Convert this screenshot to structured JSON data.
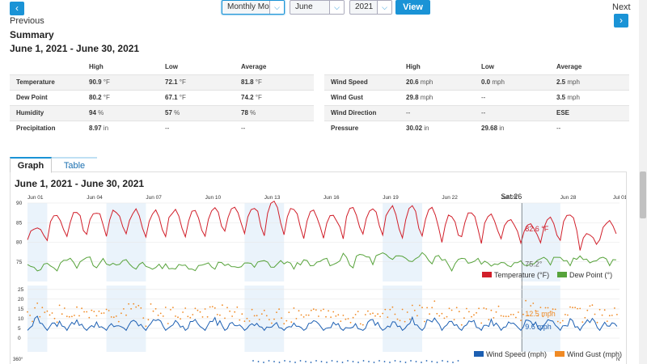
{
  "nav": {
    "prev_icon": "chevron-left-icon",
    "prev_glyph": "‹",
    "prev_label": "Previous",
    "next_icon": "chevron-right-icon",
    "next_glyph": "›",
    "next_label": "Next"
  },
  "controls": {
    "mode_value": "Monthly Mode",
    "month_value": "June",
    "year_value": "2021",
    "dropdown_glyph": "⌵",
    "view_label": "View"
  },
  "summary": {
    "heading": "Summary",
    "range": "June 1, 2021 - June 30, 2021",
    "left_table": {
      "headers": [
        "",
        "High",
        "Low",
        "Average"
      ],
      "rows": [
        {
          "label": "Temperature",
          "high": "90.9",
          "high_unit": " °F",
          "low": "72.1",
          "low_unit": " °F",
          "avg": "81.8",
          "avg_unit": " °F"
        },
        {
          "label": "Dew Point",
          "high": "80.2",
          "high_unit": " °F",
          "low": "67.1",
          "low_unit": " °F",
          "avg": "74.2",
          "avg_unit": " °F"
        },
        {
          "label": "Humidity",
          "high": "94",
          "high_unit": " %",
          "low": "57",
          "low_unit": " %",
          "avg": "78",
          "avg_unit": " %"
        },
        {
          "label": "Precipitation",
          "high": "8.97",
          "high_unit": " in",
          "low": "--",
          "low_unit": "",
          "avg": "--",
          "avg_unit": ""
        }
      ]
    },
    "right_table": {
      "headers": [
        "",
        "High",
        "Low",
        "Average"
      ],
      "rows": [
        {
          "label": "Wind Speed",
          "high": "20.6",
          "high_unit": " mph",
          "low": "0.0",
          "low_unit": " mph",
          "avg": "2.5",
          "avg_unit": " mph"
        },
        {
          "label": "Wind Gust",
          "high": "29.8",
          "high_unit": " mph",
          "low": "--",
          "low_unit": "",
          "avg": "3.5",
          "avg_unit": " mph"
        },
        {
          "label": "Wind Direction",
          "high": "--",
          "high_unit": "",
          "low": "--",
          "low_unit": "",
          "avg": "ESE",
          "avg_unit": ""
        },
        {
          "label": "Pressure",
          "high": "30.02",
          "high_unit": " in",
          "low": "29.68",
          "low_unit": " in",
          "avg": "--",
          "avg_unit": ""
        }
      ]
    }
  },
  "tabs": {
    "graph": "Graph",
    "table": "Table",
    "active": "Graph"
  },
  "graph": {
    "range_title": "June 1, 2021 - June 30, 2021",
    "hover_label": "Sat 26",
    "colors": {
      "temperature": "#d11f2a",
      "dew_point": "#57a33b",
      "wind_speed": "#1c5fb2",
      "wind_gust": "#f08a24",
      "band": "#eaf3fb"
    }
  },
  "chart_data": [
    {
      "type": "line",
      "x_ticks": [
        "Jun 01",
        "Jun 04",
        "Jun 07",
        "Jun 10",
        "Jun 13",
        "Jun 16",
        "Jun 19",
        "Jun 22",
        "Jun 25",
        "Jun 28",
        "Jul 01"
      ],
      "y_ticks": [
        "90",
        "85",
        "80",
        "75"
      ],
      "ylim": [
        70,
        90
      ],
      "xlim_days": [
        1,
        31
      ],
      "series": [
        {
          "name": "Temperature (°F)",
          "color": "#d11f2a",
          "daily_low": [
            79,
            78,
            78,
            79,
            79,
            79,
            78,
            79,
            78,
            78,
            79,
            79,
            78,
            78,
            78,
            79,
            77,
            78,
            78,
            78,
            78,
            77,
            78,
            77,
            78,
            78,
            77,
            78,
            76,
            78
          ],
          "daily_high": [
            84,
            87,
            88,
            88,
            88,
            88,
            88,
            88,
            88,
            89,
            89,
            89,
            90,
            89,
            88,
            87,
            89,
            89,
            89,
            89,
            89,
            87,
            88,
            87,
            86,
            85,
            86,
            87,
            82,
            85
          ]
        },
        {
          "name": "Dew Point (°F)",
          "color": "#57a33b",
          "daily_low": [
            72,
            72,
            73,
            73,
            73,
            72,
            73,
            73,
            73,
            73,
            73,
            73,
            73,
            73,
            73,
            73,
            72,
            74,
            74,
            74,
            74,
            72,
            74,
            74,
            74,
            74,
            74,
            74,
            74,
            74
          ],
          "daily_high": [
            74,
            75,
            76,
            76,
            75,
            75,
            74,
            74,
            74,
            75,
            74,
            75,
            75,
            75,
            75,
            76,
            77,
            77,
            77,
            77,
            77,
            76,
            76,
            75,
            75,
            75,
            76,
            76,
            76,
            76
          ]
        }
      ],
      "hover": {
        "day": "Sat 26",
        "temperature": "82.6 °F",
        "dew_point": "75.2°"
      },
      "legend": [
        "Temperature (°F)",
        "Dew Point (°)"
      ]
    },
    {
      "type": "line",
      "x_ticks": [
        "Jun 01",
        "Jun 04",
        "Jun 07",
        "Jun 10",
        "Jun 13",
        "Jun 16",
        "Jun 19",
        "Jun 22",
        "Jun 25",
        "Jun 28",
        "Jul 01"
      ],
      "y_ticks": [
        "25",
        "20",
        "15",
        "10",
        "5",
        "0"
      ],
      "ylim": [
        0,
        27
      ],
      "series": [
        {
          "name": "Wind Speed (mph)",
          "color": "#1c5fb2",
          "daily_peak": [
            12,
            10,
            10,
            9,
            10,
            11,
            11,
            11,
            11,
            11,
            10,
            9,
            9,
            10,
            10,
            9,
            8,
            10,
            10,
            11,
            12,
            10,
            11,
            11,
            9,
            12,
            10,
            10,
            11,
            10
          ]
        },
        {
          "name": "Wind Gust (mph)",
          "color": "#f08a24",
          "daily_peak": [
            16,
            15,
            14,
            13,
            14,
            16,
            16,
            15,
            15,
            15,
            14,
            13,
            13,
            14,
            14,
            13,
            12,
            14,
            14,
            15,
            17,
            14,
            15,
            15,
            13,
            20,
            14,
            14,
            15,
            14
          ]
        }
      ],
      "hover": {
        "gust": "12.5 mph",
        "speed": "9.6 mph"
      },
      "legend": [
        "Wind Speed (mph)",
        "Wind Gust (mph)"
      ]
    },
    {
      "type": "scatter",
      "y_ticks": [
        "360°"
      ],
      "x_edge_label": "N"
    }
  ]
}
